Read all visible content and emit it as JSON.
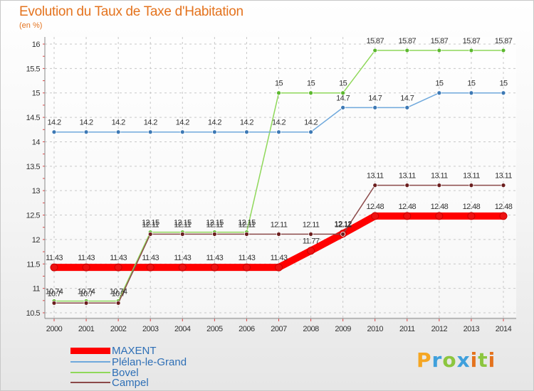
{
  "chart_data": {
    "type": "line",
    "title": "Evolution du Taux de Taxe d'Habitation",
    "subtitle": "(en %)",
    "x": [
      "2000",
      "2001",
      "2002",
      "2003",
      "2004",
      "2005",
      "2006",
      "2007",
      "2008",
      "2009",
      "2010",
      "2011",
      "2012",
      "2013",
      "2014"
    ],
    "ylim": [
      10.5,
      16
    ],
    "yticks": [
      10.5,
      11,
      11.5,
      12,
      12.5,
      13,
      13.5,
      14,
      14.5,
      15,
      15.5,
      16
    ],
    "grid": true,
    "legend_position": "bottom-left",
    "series": [
      {
        "name": "MAXENT",
        "color": "#ff0000",
        "marker_color": "#ee1111",
        "values": [
          11.43,
          11.43,
          11.43,
          11.43,
          11.43,
          11.43,
          11.43,
          11.43,
          11.77,
          12.12,
          12.48,
          12.48,
          12.48,
          12.48,
          12.48
        ],
        "labels": [
          "11.43",
          "11.43",
          "11.43",
          "11.43",
          "11.43",
          "11.43",
          "11.43",
          "11.43",
          "11.77",
          "12.12",
          "12.48",
          "12.48",
          "12.48",
          "12.48",
          "12.48"
        ]
      },
      {
        "name": "Plélan-le-Grand",
        "color": "#6fa8dc",
        "marker_color": "#3c78b4",
        "values": [
          14.2,
          14.2,
          14.2,
          14.2,
          14.2,
          14.2,
          14.2,
          14.2,
          14.2,
          14.7,
          14.7,
          14.7,
          15,
          15,
          15
        ],
        "labels": [
          "14.2",
          "14.2",
          "14.2",
          "14.2",
          "14.2",
          "14.2",
          "14.2",
          "14.2",
          "14.2",
          "14.7",
          "14.7",
          "14.7",
          "15",
          "15",
          "15"
        ]
      },
      {
        "name": "Bovel",
        "color": "#8fd85a",
        "marker_color": "#5cb82e",
        "values": [
          10.74,
          10.74,
          10.74,
          12.15,
          12.15,
          12.15,
          12.15,
          15,
          15,
          15,
          15.87,
          15.87,
          15.87,
          15.87,
          15.87
        ],
        "labels": [
          "10.74",
          "10.74",
          "10.74",
          "12.15",
          "12.15",
          "12.15",
          "12.15",
          "15",
          "15",
          "15",
          "15.87",
          "15.87",
          "15.87",
          "15.87",
          "15.87"
        ]
      },
      {
        "name": "Campel",
        "color": "#8b4a4a",
        "marker_color": "#6b1e1e",
        "values": [
          10.7,
          10.7,
          10.7,
          12.11,
          12.11,
          12.11,
          12.11,
          12.11,
          12.11,
          12.11,
          13.11,
          13.11,
          13.11,
          13.11,
          13.11
        ],
        "labels": [
          "10.7",
          "10.7",
          "10.7",
          "12.11",
          "12.11",
          "12.11",
          "12.11",
          "12.11",
          "12.11",
          "12.11",
          "13.11",
          "13.11",
          "13.11",
          "13.11",
          "13.11"
        ]
      }
    ]
  },
  "logo": {
    "letters": [
      "P",
      "r",
      "o",
      "x",
      "i",
      "t",
      "i"
    ],
    "colors": [
      "#f5a623",
      "#3fa0dc",
      "#8cc63f",
      "#3fa0dc",
      "#e4731e",
      "#8cc63f",
      "#e4731e"
    ]
  }
}
